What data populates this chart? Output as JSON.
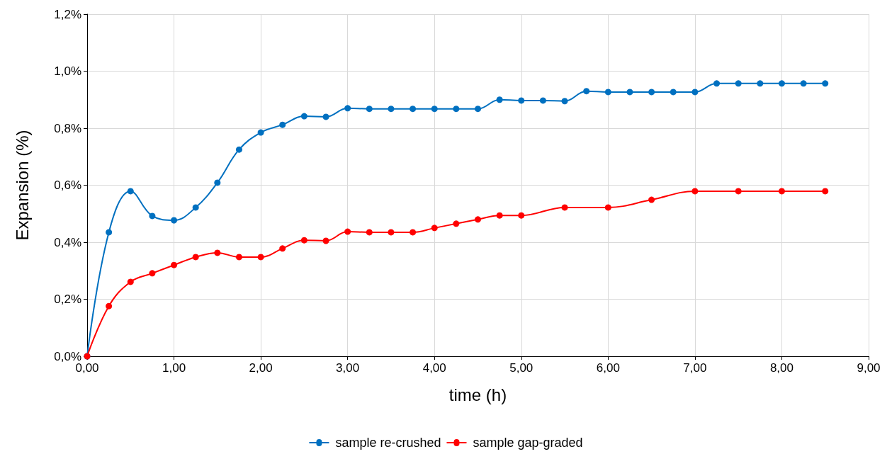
{
  "chart_data": {
    "type": "line",
    "xlabel": "time (h)",
    "ylabel": "Expansion (%)",
    "xlim": [
      0,
      9
    ],
    "ylim": [
      0,
      1.2
    ],
    "xticks": [
      {
        "value": 0,
        "label": "0,00"
      },
      {
        "value": 1,
        "label": "1,00"
      },
      {
        "value": 2,
        "label": "2,00"
      },
      {
        "value": 3,
        "label": "3,00"
      },
      {
        "value": 4,
        "label": "4,00"
      },
      {
        "value": 5,
        "label": "5,00"
      },
      {
        "value": 6,
        "label": "6,00"
      },
      {
        "value": 7,
        "label": "7,00"
      },
      {
        "value": 8,
        "label": "8,00"
      },
      {
        "value": 9,
        "label": "9,00"
      }
    ],
    "yticks": [
      {
        "value": 0,
        "label": "0,0%"
      },
      {
        "value": 0.2,
        "label": "0,2%"
      },
      {
        "value": 0.4,
        "label": "0,4%"
      },
      {
        "value": 0.6,
        "label": "0,6%"
      },
      {
        "value": 0.8,
        "label": "0,8%"
      },
      {
        "value": 1,
        "label": "1,0%"
      },
      {
        "value": 1.2,
        "label": "1,2%"
      }
    ],
    "grid": true,
    "legend": "bottom",
    "marker": "circle",
    "line_style": "solid",
    "series": [
      {
        "name": "sample re-crushed",
        "color": "#0070c0",
        "x": [
          0,
          0.25,
          0.5,
          0.75,
          1,
          1.25,
          1.5,
          1.75,
          2,
          2.25,
          2.5,
          2.75,
          3,
          3.25,
          3.5,
          3.75,
          4,
          4.25,
          4.5,
          4.75,
          5,
          5.25,
          5.5,
          5.75,
          6,
          6.25,
          6.5,
          6.75,
          7,
          7.25,
          7.5,
          7.75,
          8,
          8.25,
          8.5
        ],
        "values": [
          0,
          0.435,
          0.579,
          0.492,
          0.477,
          0.522,
          0.609,
          0.725,
          0.785,
          0.812,
          0.842,
          0.84,
          0.87,
          0.868,
          0.868,
          0.868,
          0.868,
          0.868,
          0.868,
          0.9,
          0.897,
          0.897,
          0.895,
          0.93,
          0.927,
          0.927,
          0.927,
          0.927,
          0.927,
          0.957,
          0.957,
          0.957,
          0.957,
          0.957,
          0.957
        ]
      },
      {
        "name": "sample gap-graded",
        "color": "#ff0000",
        "x": [
          0,
          0.25,
          0.5,
          0.75,
          1,
          1.25,
          1.5,
          1.75,
          2,
          2.25,
          2.5,
          2.75,
          3,
          3.25,
          3.5,
          3.75,
          4,
          4.25,
          4.5,
          4.75,
          5,
          5.5,
          6,
          6.5,
          7,
          7.5,
          8,
          8.5
        ],
        "values": [
          0,
          0.176,
          0.261,
          0.291,
          0.32,
          0.348,
          0.363,
          0.348,
          0.348,
          0.378,
          0.407,
          0.405,
          0.437,
          0.435,
          0.435,
          0.435,
          0.45,
          0.465,
          0.48,
          0.494,
          0.494,
          0.522,
          0.522,
          0.549,
          0.579,
          0.579,
          0.579,
          0.579
        ]
      }
    ]
  }
}
